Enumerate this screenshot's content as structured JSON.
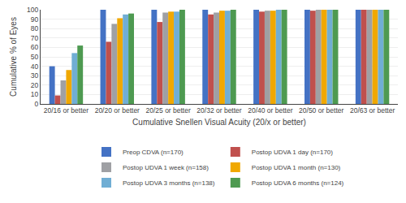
{
  "chart_data": {
    "type": "bar",
    "categories": [
      "20/16 or better",
      "20/20 or better",
      "20/25 or better",
      "20/32 or better",
      "20/40 or better",
      "20/50 or better",
      "20/63 or better"
    ],
    "series": [
      {
        "name": "Preop CDVA (n=170)",
        "color": "#4472C4",
        "values": [
          40,
          100,
          100,
          100,
          100,
          100,
          100
        ]
      },
      {
        "name": "Postop UDVA 1 day (n=170)",
        "color": "#C0504D",
        "values": [
          9,
          66,
          87,
          95,
          98,
          99,
          100
        ]
      },
      {
        "name": "Postop UDVA 1 week (n=158)",
        "color": "#9FA0A4",
        "values": [
          25,
          85,
          97,
          97,
          99,
          100,
          100
        ]
      },
      {
        "name": "Postop UDVA 1 month (n=130)",
        "color": "#F0A800",
        "values": [
          36,
          91,
          98,
          99,
          99,
          100,
          100
        ]
      },
      {
        "name": "Postop UDVA 3 months (n=138)",
        "color": "#70AED4",
        "values": [
          54,
          95,
          98,
          99,
          100,
          100,
          100
        ]
      },
      {
        "name": "Postop UDVA 6 months (n=124)",
        "color": "#4E9A51",
        "values": [
          62,
          96,
          100,
          100,
          100,
          100,
          100
        ]
      }
    ],
    "xlabel": "Cumulative Snellen Visual Acuity (20/x or better)",
    "ylabel": "Cumulative % of Eyes",
    "ylim": [
      0,
      100
    ],
    "yticks": [
      0,
      10,
      20,
      30,
      40,
      50,
      60,
      70,
      80,
      90,
      100
    ],
    "grid": true,
    "legend": "bottom"
  }
}
